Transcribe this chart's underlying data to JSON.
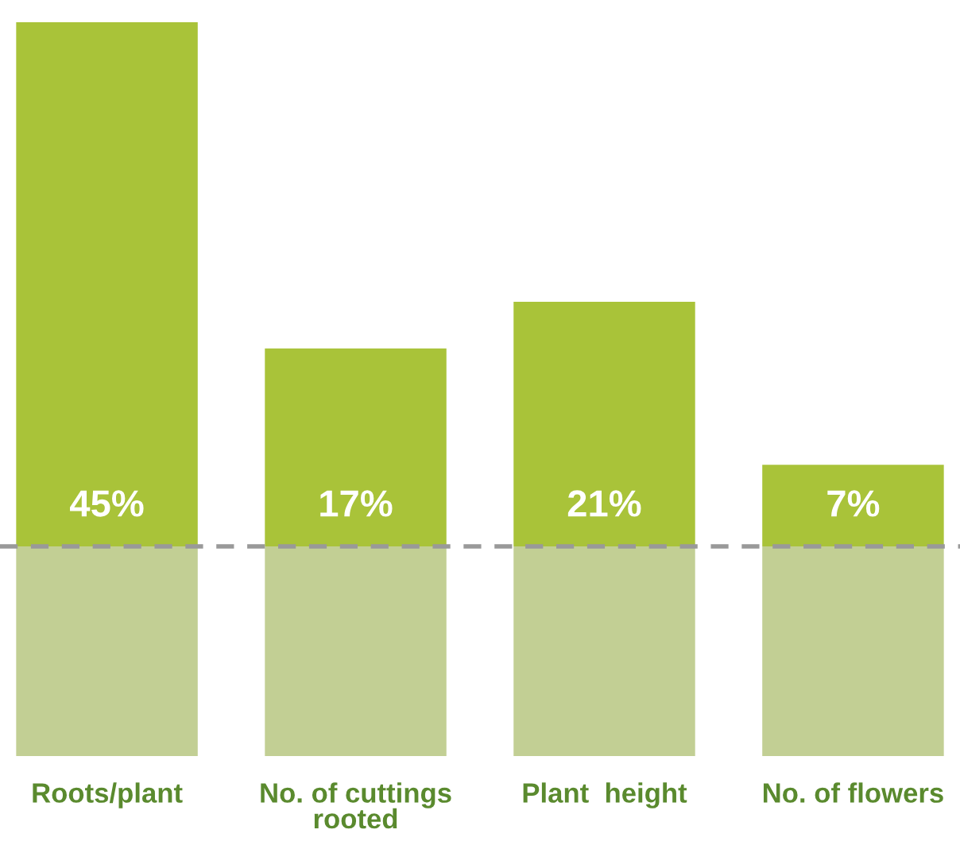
{
  "chart_data": {
    "type": "bar",
    "stacked": true,
    "categories": [
      "Roots/plant",
      "No. of cuttings\nrooted",
      "Plant  height",
      "No. of flowers"
    ],
    "series": [
      {
        "color": "#c2cf94",
        "values": [
          18,
          18,
          18,
          18
        ]
      },
      {
        "color": "#a9c339",
        "values": [
          45,
          17,
          21,
          7
        ],
        "value_labels": [
          "45%",
          "17%",
          "21%",
          "7%"
        ]
      }
    ],
    "ylim": [
      0,
      63
    ],
    "tick_labels": "x",
    "ref_lines": [
      {
        "axis": "y",
        "value": 18,
        "color": "#999999",
        "line_style": "dashed"
      }
    ],
    "grid": false,
    "legend": false
  }
}
